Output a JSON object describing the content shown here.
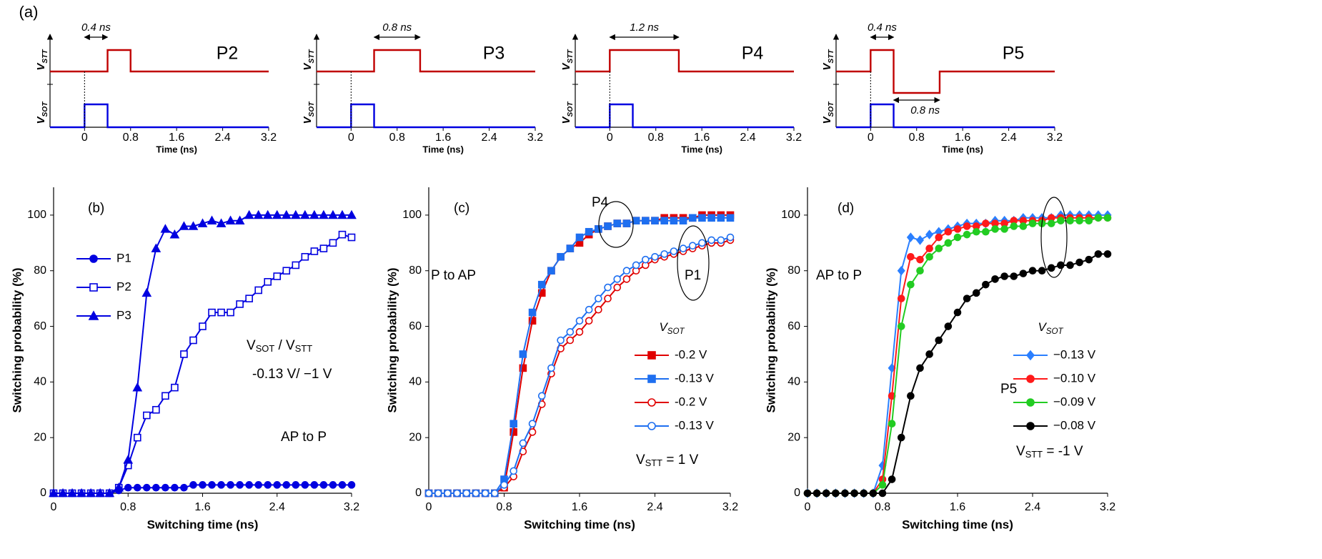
{
  "chart_data": [
    {
      "type": "pulse",
      "title": "P2",
      "xlabel": "Time (ns)",
      "xlim": [
        -0.6,
        3.2
      ],
      "xticks": [
        0,
        0.8,
        1.6,
        2.4,
        3.2
      ],
      "annotations": [
        [
          "(a)"
        ]
      ],
      "series": [
        {
          "name": [
            "V",
            {
              "sub": "STT"
            }
          ],
          "color": "#c00000",
          "x": [
            -0.6,
            0.4,
            0.4,
            0.8,
            0.8,
            3.2
          ],
          "values": [
            0,
            0,
            1,
            1,
            0,
            0
          ]
        },
        {
          "name": [
            "V",
            {
              "sub": "SOT"
            }
          ],
          "color": "#0000e0",
          "x": [
            -0.6,
            0,
            0,
            0.4,
            0.4,
            3.2
          ],
          "values": [
            0,
            0,
            1,
            1,
            0,
            0
          ]
        }
      ],
      "spans": [
        {
          "text": "0.4 ns",
          "x": [
            0,
            0.4
          ]
        }
      ]
    },
    {
      "type": "pulse",
      "title": "P3",
      "xlabel": "Time (ns)",
      "xlim": [
        -0.6,
        3.2
      ],
      "xticks": [
        0,
        0.8,
        1.6,
        2.4,
        3.2
      ],
      "series": [
        {
          "name": [
            "V",
            {
              "sub": "STT"
            }
          ],
          "color": "#c00000",
          "x": [
            -0.6,
            0.4,
            0.4,
            1.2,
            1.2,
            3.2
          ],
          "values": [
            0,
            0,
            1,
            1,
            0,
            0
          ]
        },
        {
          "name": [
            "V",
            {
              "sub": "SOT"
            }
          ],
          "color": "#0000e0",
          "x": [
            -0.6,
            0,
            0,
            0.4,
            0.4,
            3.2
          ],
          "values": [
            0,
            0,
            1,
            1,
            0,
            0
          ]
        }
      ],
      "spans": [
        {
          "text": "0.8 ns",
          "x": [
            0.4,
            1.2
          ]
        }
      ]
    },
    {
      "type": "pulse",
      "title": "P4",
      "xlabel": "Time (ns)",
      "xlim": [
        -0.6,
        3.2
      ],
      "xticks": [
        0,
        0.8,
        1.6,
        2.4,
        3.2
      ],
      "series": [
        {
          "name": [
            "V",
            {
              "sub": "STT"
            }
          ],
          "color": "#c00000",
          "x": [
            -0.6,
            0,
            0,
            1.2,
            1.2,
            3.2
          ],
          "values": [
            0,
            0,
            1,
            1,
            0,
            0
          ]
        },
        {
          "name": [
            "V",
            {
              "sub": "SOT"
            }
          ],
          "color": "#0000e0",
          "x": [
            -0.6,
            0,
            0,
            0.4,
            0.4,
            3.2
          ],
          "values": [
            0,
            0,
            1,
            1,
            0,
            0
          ]
        }
      ],
      "spans": [
        {
          "text": "1.2 ns",
          "x": [
            0,
            1.2
          ]
        }
      ]
    },
    {
      "type": "pulse",
      "title": "P5",
      "xlabel": "Time (ns)",
      "xlim": [
        -0.6,
        3.2
      ],
      "xticks": [
        0,
        0.8,
        1.6,
        2.4,
        3.2
      ],
      "series": [
        {
          "name": [
            "V",
            {
              "sub": "STT"
            }
          ],
          "color": "#c00000",
          "x": [
            -0.6,
            0,
            0,
            0.4,
            0.4,
            1.2,
            1.2,
            3.2
          ],
          "values": [
            0,
            0,
            1,
            1,
            -1,
            -1,
            0,
            0
          ]
        },
        {
          "name": [
            "V",
            {
              "sub": "SOT"
            }
          ],
          "color": "#0000e0",
          "x": [
            -0.6,
            0,
            0,
            0.4,
            0.4,
            3.2
          ],
          "values": [
            0,
            0,
            1,
            1,
            0,
            0
          ]
        }
      ],
      "spans": [
        {
          "text": "0.4 ns",
          "x": [
            0,
            0.4
          ]
        },
        {
          "text": "0.8 ns",
          "x": [
            0.4,
            1.2
          ]
        }
      ]
    },
    {
      "type": "line",
      "xlabel": "Switching time (ns)",
      "ylabel": "Switching probability (%)",
      "xlim": [
        0,
        3.2
      ],
      "xticks": [
        0,
        0.8,
        1.6,
        2.4,
        3.2
      ],
      "ylim": [
        0,
        110
      ],
      "yticks": [
        0,
        20,
        40,
        60,
        80,
        100
      ],
      "legend": "upper left",
      "annotations": [
        [
          "(b)"
        ],
        [
          "V",
          {
            "sub": "SOT"
          },
          " / V",
          {
            "sub": "STT"
          }
        ],
        [
          "-0.13 V/ −1 V"
        ],
        [
          "AP to P"
        ]
      ],
      "x": [
        0,
        0.1,
        0.2,
        0.3,
        0.4,
        0.5,
        0.6,
        0.7,
        0.8,
        0.9,
        1.0,
        1.1,
        1.2,
        1.3,
        1.4,
        1.5,
        1.6,
        1.7,
        1.8,
        1.9,
        2.0,
        2.1,
        2.2,
        2.3,
        2.4,
        2.5,
        2.6,
        2.7,
        2.8,
        2.9,
        3.0,
        3.1,
        3.2
      ],
      "series": [
        {
          "name": "P1",
          "color": "#0000e0",
          "marker": "circle",
          "filled": true,
          "values": [
            0,
            0,
            0,
            0,
            0,
            0,
            0,
            1,
            2,
            2,
            2,
            2,
            2,
            2,
            2,
            3,
            3,
            3,
            3,
            3,
            3,
            3,
            3,
            3,
            3,
            3,
            3,
            3,
            3,
            3,
            3,
            3,
            3
          ]
        },
        {
          "name": "P2",
          "color": "#0000e0",
          "marker": "square",
          "filled": false,
          "values": [
            0,
            0,
            0,
            0,
            0,
            0,
            0,
            2,
            10,
            20,
            28,
            30,
            35,
            38,
            50,
            55,
            60,
            65,
            65,
            65,
            68,
            70,
            73,
            76,
            78,
            80,
            82,
            85,
            87,
            88,
            90,
            93,
            92
          ]
        },
        {
          "name": "P3",
          "color": "#0000e0",
          "marker": "triangle",
          "filled": true,
          "values": [
            0,
            0,
            0,
            0,
            0,
            0,
            0,
            2,
            12,
            38,
            72,
            88,
            95,
            93,
            96,
            96,
            97,
            98,
            97,
            98,
            98,
            100,
            100,
            100,
            100,
            100,
            100,
            100,
            100,
            100,
            100,
            100,
            100
          ]
        }
      ]
    },
    {
      "type": "line",
      "xlabel": "Switching time (ns)",
      "ylabel": "Switching probability (%)",
      "xlim": [
        0,
        3.2
      ],
      "xticks": [
        0,
        0.8,
        1.6,
        2.4,
        3.2
      ],
      "ylim": [
        0,
        110
      ],
      "yticks": [
        0,
        20,
        40,
        60,
        80,
        100
      ],
      "legend": "lower right",
      "legend_title": [
        "V",
        {
          "sub": "SOT"
        }
      ],
      "annotations": [
        [
          "(c)"
        ],
        [
          "P to AP"
        ],
        [
          "P4"
        ],
        [
          "P1"
        ],
        [
          "V",
          {
            "sub": "STT"
          },
          " = 1 V"
        ]
      ],
      "x": [
        0,
        0.1,
        0.2,
        0.3,
        0.4,
        0.5,
        0.6,
        0.7,
        0.8,
        0.9,
        1.0,
        1.1,
        1.2,
        1.3,
        1.4,
        1.5,
        1.6,
        1.7,
        1.8,
        1.9,
        2.0,
        2.1,
        2.2,
        2.3,
        2.4,
        2.5,
        2.6,
        2.7,
        2.8,
        2.9,
        3.0,
        3.1,
        3.2
      ],
      "series": [
        {
          "name": "-0.2 V",
          "color": "#e00000",
          "marker": "square",
          "filled": true,
          "values": [
            0,
            0,
            0,
            0,
            0,
            0,
            0,
            0,
            2,
            22,
            45,
            62,
            72,
            80,
            85,
            88,
            90,
            93,
            95,
            96,
            97,
            97,
            98,
            98,
            98,
            99,
            99,
            99,
            99,
            100,
            100,
            100,
            100
          ]
        },
        {
          "name": "-0.13 V",
          "color": "#1e6ff0",
          "marker": "square",
          "filled": true,
          "values": [
            0,
            0,
            0,
            0,
            0,
            0,
            0,
            0,
            5,
            25,
            50,
            65,
            75,
            80,
            85,
            88,
            92,
            94,
            95,
            96,
            97,
            97,
            98,
            98,
            98,
            98,
            98,
            98,
            99,
            99,
            99,
            99,
            99
          ]
        },
        {
          "name": "-0.2 V",
          "color": "#e00000",
          "marker": "circle",
          "filled": false,
          "values": [
            0,
            0,
            0,
            0,
            0,
            0,
            0,
            0,
            2,
            6,
            15,
            22,
            32,
            43,
            52,
            55,
            58,
            62,
            66,
            70,
            74,
            77,
            80,
            82,
            84,
            85,
            86,
            87,
            88,
            89,
            90,
            90,
            91
          ]
        },
        {
          "name": "-0.13 V",
          "color": "#1e6ff0",
          "marker": "circle",
          "filled": false,
          "values": [
            0,
            0,
            0,
            0,
            0,
            0,
            0,
            0,
            3,
            8,
            18,
            25,
            35,
            45,
            55,
            58,
            62,
            66,
            70,
            74,
            77,
            80,
            82,
            84,
            85,
            86,
            87,
            88,
            89,
            90,
            91,
            91,
            92
          ]
        }
      ]
    },
    {
      "type": "line",
      "xlabel": "Switching time (ns)",
      "ylabel": "Switching probability (%)",
      "xlim": [
        0,
        3.2
      ],
      "xticks": [
        0,
        0.8,
        1.6,
        2.4,
        3.2
      ],
      "ylim": [
        0,
        110
      ],
      "yticks": [
        0,
        20,
        40,
        60,
        80,
        100
      ],
      "legend": "lower right",
      "legend_title": [
        "V",
        {
          "sub": "SOT"
        }
      ],
      "annotations": [
        [
          "(d)"
        ],
        [
          "AP to P"
        ],
        [
          "P5"
        ],
        [
          "V",
          {
            "sub": "STT"
          },
          " = -1 V"
        ]
      ],
      "x": [
        0,
        0.1,
        0.2,
        0.3,
        0.4,
        0.5,
        0.6,
        0.7,
        0.8,
        0.9,
        1.0,
        1.1,
        1.2,
        1.3,
        1.4,
        1.5,
        1.6,
        1.7,
        1.8,
        1.9,
        2.0,
        2.1,
        2.2,
        2.3,
        2.4,
        2.5,
        2.6,
        2.7,
        2.8,
        2.9,
        3.0,
        3.1,
        3.2
      ],
      "series": [
        {
          "name": "−0.13 V",
          "color": "#2a7fff",
          "marker": "diamond",
          "filled": true,
          "values": [
            0,
            0,
            0,
            0,
            0,
            0,
            0,
            0,
            10,
            45,
            80,
            92,
            91,
            93,
            94,
            95,
            96,
            97,
            97,
            97,
            98,
            98,
            98,
            99,
            99,
            99,
            99,
            100,
            100,
            100,
            100,
            100,
            100
          ]
        },
        {
          "name": "−0.10 V",
          "color": "#ff1a1a",
          "marker": "circle",
          "filled": true,
          "values": [
            0,
            0,
            0,
            0,
            0,
            0,
            0,
            0,
            5,
            35,
            70,
            85,
            84,
            88,
            92,
            94,
            95,
            96,
            96,
            97,
            97,
            97,
            98,
            98,
            98,
            98,
            99,
            99,
            99,
            99,
            99,
            99,
            99
          ]
        },
        {
          "name": "−0.09 V",
          "color": "#22cc22",
          "marker": "circle",
          "filled": true,
          "values": [
            0,
            0,
            0,
            0,
            0,
            0,
            0,
            0,
            3,
            25,
            60,
            75,
            80,
            85,
            88,
            90,
            92,
            93,
            94,
            94,
            95,
            95,
            96,
            96,
            97,
            97,
            97,
            98,
            98,
            98,
            98,
            99,
            99
          ]
        },
        {
          "name": "−0.08 V",
          "color": "#000000",
          "marker": "circle",
          "filled": true,
          "values": [
            0,
            0,
            0,
            0,
            0,
            0,
            0,
            0,
            0,
            5,
            20,
            35,
            45,
            50,
            55,
            60,
            65,
            70,
            72,
            75,
            77,
            78,
            78,
            79,
            80,
            80,
            81,
            82,
            82,
            83,
            84,
            86,
            86
          ]
        }
      ]
    }
  ]
}
